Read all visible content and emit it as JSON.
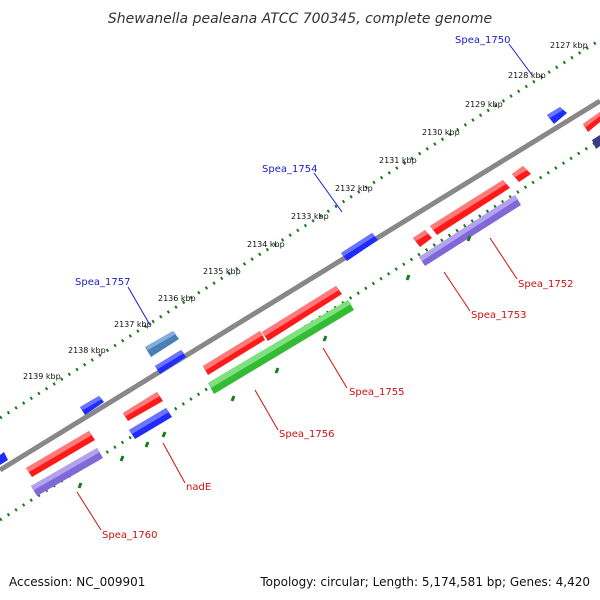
{
  "title": "Shewanella pealeana ATCC 700345, complete genome",
  "accession": "Accession: NC_009901",
  "summary": "Topology: circular; Length: 5,174,581 bp; Genes: 4,420",
  "colors": {
    "forward_cds": "#ff1a1a",
    "reverse_cds": "#1f2bff",
    "gene_bar": "#8068d8",
    "rna": "#33bb33",
    "pseudo": "#4a7fb5",
    "backbone": "#888888",
    "blue_label": "#1a1acc",
    "red_label": "#cc1111"
  },
  "ticks": [
    "2127 kbp",
    "2128 kbp",
    "2129 kbp",
    "2130 kbp",
    "2131 kbp",
    "2132 kbp",
    "2133 kbp",
    "2134 kbp",
    "2135 kbp",
    "2136 kbp",
    "2137 kbp",
    "2138 kbp",
    "2139 kbp"
  ],
  "gene_labels": {
    "spea_1750": "Spea_1750",
    "spea_1754": "Spea_1754",
    "spea_1757": "Spea_1757",
    "spea_1752": "Spea_1752",
    "spea_1753": "Spea_1753",
    "spea_1755": "Spea_1755",
    "spea_1756": "Spea_1756",
    "nade": "nadE",
    "spea_1760": "Spea_1760"
  }
}
